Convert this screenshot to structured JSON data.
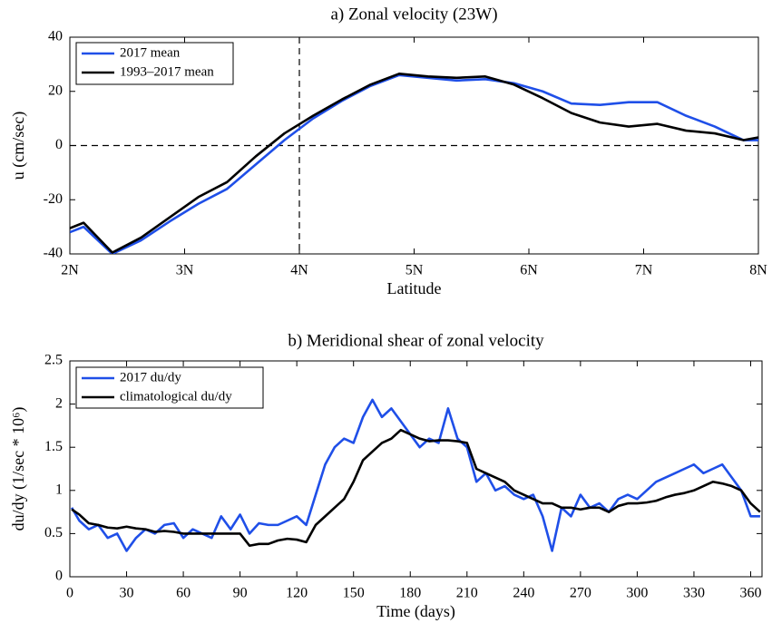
{
  "chart_data": [
    {
      "type": "line",
      "title": "a) Zonal velocity (23W)",
      "xlabel": "Latitude",
      "ylabel": "u (cm/sec)",
      "x": [
        2.0,
        2.12,
        2.37,
        2.62,
        2.87,
        3.12,
        3.37,
        3.62,
        3.87,
        4.12,
        4.37,
        4.62,
        4.87,
        5.12,
        5.37,
        5.62,
        5.87,
        6.12,
        6.37,
        6.62,
        6.87,
        7.12,
        7.37,
        7.62,
        7.87,
        8.0
      ],
      "series": [
        {
          "name": "2017 mean",
          "color": "#1f4fe8",
          "values": [
            -32,
            -30,
            -40,
            -35,
            -28,
            -21.5,
            -16,
            -7,
            2,
            10,
            16.5,
            22,
            26,
            25,
            24,
            24.5,
            23,
            20,
            15.5,
            15,
            16,
            16,
            11,
            7,
            2,
            2
          ]
        },
        {
          "name": "1993–2017 mean",
          "color": "#000000",
          "values": [
            -30.5,
            -28.5,
            -39.5,
            -34,
            -26.5,
            -19,
            -13.5,
            -4,
            4.5,
            11,
            17,
            22.5,
            26.5,
            25.5,
            25,
            25.5,
            22.5,
            17.5,
            12,
            8.5,
            7,
            8,
            5.5,
            4.5,
            2,
            3
          ]
        }
      ],
      "xlim": [
        2,
        8
      ],
      "xticks": [
        {
          "value": 2,
          "label": "2N"
        },
        {
          "value": 3,
          "label": "3N"
        },
        {
          "value": 4,
          "label": "4N"
        },
        {
          "value": 5,
          "label": "5N"
        },
        {
          "value": 6,
          "label": "6N"
        },
        {
          "value": 7,
          "label": "7N"
        },
        {
          "value": 8,
          "label": "8N"
        }
      ],
      "ylim": [
        -40,
        40
      ],
      "yticks": [
        -40,
        -20,
        0,
        20,
        40
      ],
      "hline": 0,
      "vline": 4,
      "legend": "upper-left",
      "grid": false
    },
    {
      "type": "line",
      "title": "b) Meridional shear of zonal velocity",
      "xlabel": "Time (days)",
      "ylabel": "du/dy (1/sec * 10⁶)",
      "x": [
        1,
        5,
        10,
        15,
        20,
        25,
        30,
        35,
        40,
        45,
        50,
        55,
        60,
        65,
        70,
        75,
        80,
        85,
        90,
        95,
        100,
        105,
        110,
        115,
        120,
        125,
        130,
        135,
        140,
        145,
        150,
        155,
        160,
        165,
        170,
        175,
        180,
        185,
        190,
        195,
        200,
        205,
        210,
        215,
        220,
        225,
        230,
        235,
        240,
        245,
        250,
        255,
        260,
        265,
        270,
        275,
        280,
        285,
        290,
        295,
        300,
        305,
        310,
        315,
        320,
        325,
        330,
        335,
        340,
        345,
        350,
        355,
        360,
        365
      ],
      "series": [
        {
          "name": "2017 du/dy",
          "color": "#1f4fe8",
          "values": [
            0.8,
            0.65,
            0.55,
            0.6,
            0.45,
            0.5,
            0.3,
            0.45,
            0.55,
            0.5,
            0.6,
            0.62,
            0.45,
            0.55,
            0.5,
            0.45,
            0.7,
            0.55,
            0.72,
            0.5,
            0.62,
            0.6,
            0.6,
            0.65,
            0.7,
            0.6,
            0.95,
            1.3,
            1.5,
            1.6,
            1.55,
            1.85,
            2.05,
            1.85,
            1.95,
            1.8,
            1.65,
            1.5,
            1.6,
            1.55,
            1.95,
            1.6,
            1.5,
            1.1,
            1.2,
            1.0,
            1.05,
            0.95,
            0.9,
            0.95,
            0.7,
            0.3,
            0.8,
            0.7,
            0.95,
            0.8,
            0.85,
            0.75,
            0.9,
            0.95,
            0.9,
            1.0,
            1.1,
            1.15,
            1.2,
            1.25,
            1.3,
            1.2,
            1.25,
            1.3,
            1.15,
            1.0,
            0.7,
            0.7
          ]
        },
        {
          "name": "climatological du/dy",
          "color": "#000000",
          "values": [
            0.78,
            0.72,
            0.62,
            0.6,
            0.57,
            0.56,
            0.58,
            0.56,
            0.55,
            0.52,
            0.53,
            0.52,
            0.5,
            0.5,
            0.5,
            0.5,
            0.5,
            0.5,
            0.5,
            0.36,
            0.38,
            0.38,
            0.42,
            0.44,
            0.43,
            0.4,
            0.6,
            0.7,
            0.8,
            0.9,
            1.1,
            1.35,
            1.45,
            1.55,
            1.6,
            1.7,
            1.65,
            1.6,
            1.57,
            1.58,
            1.58,
            1.57,
            1.55,
            1.25,
            1.2,
            1.15,
            1.1,
            1.0,
            0.95,
            0.9,
            0.85,
            0.85,
            0.8,
            0.8,
            0.78,
            0.8,
            0.8,
            0.75,
            0.82,
            0.85,
            0.85,
            0.86,
            0.88,
            0.92,
            0.95,
            0.97,
            1.0,
            1.05,
            1.1,
            1.08,
            1.05,
            1.0,
            0.85,
            0.75
          ]
        }
      ],
      "xlim": [
        0,
        366
      ],
      "xticks": [
        0,
        30,
        60,
        90,
        120,
        150,
        180,
        210,
        240,
        270,
        300,
        330,
        360
      ],
      "ylim": [
        0,
        2.5
      ],
      "yticks": [
        0,
        0.5,
        1,
        1.5,
        2,
        2.5
      ],
      "legend": "upper-left",
      "grid": false
    }
  ]
}
